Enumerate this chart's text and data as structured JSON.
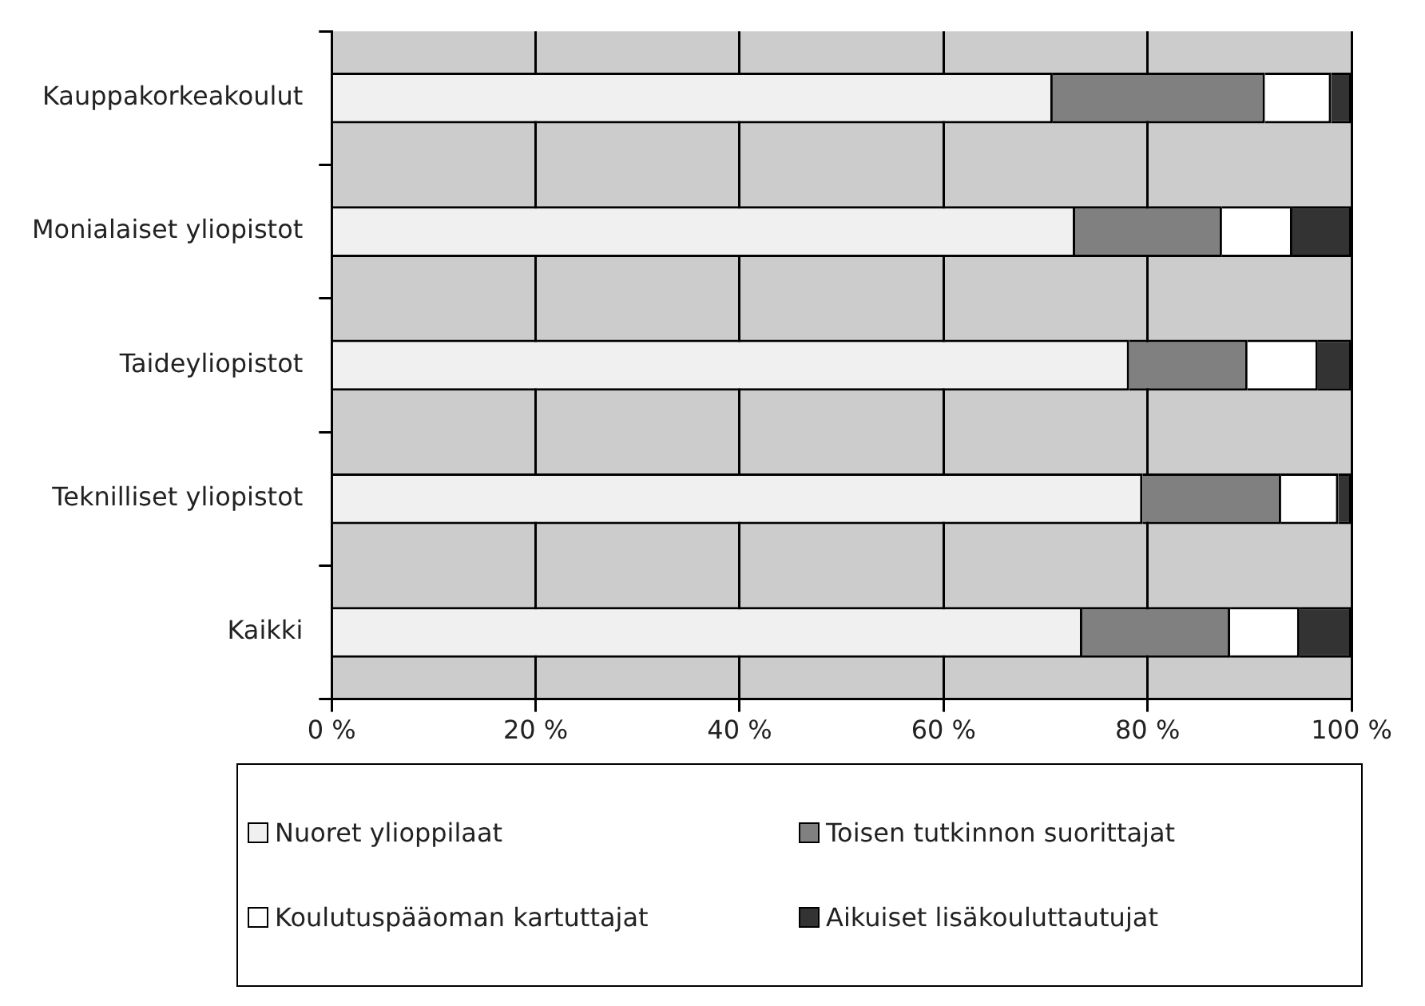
{
  "chart_data": {
    "type": "bar",
    "orientation": "horizontal",
    "stacked": true,
    "categories": [
      "Kauppakorkeakoulut",
      "Monialaiset yliopistot",
      "Taideyliopistot",
      "Teknilliset yliopistot",
      "Kaikki"
    ],
    "series": [
      {
        "name": "Nuoret ylioppilaat",
        "color": "#f0f0f0",
        "values": [
          70.7,
          72.9,
          78.2,
          79.5,
          73.6
        ]
      },
      {
        "name": "Toisen tutkinnon suorittajat",
        "color": "#808080",
        "values": [
          20.8,
          14.4,
          11.6,
          13.6,
          14.5
        ]
      },
      {
        "name": "Koulutuspääoman kartuttajat",
        "color": "#ffffff",
        "values": [
          6.5,
          6.9,
          6.9,
          5.6,
          6.8
        ]
      },
      {
        "name": "Aikuiset lisäkouluttautujat",
        "color": "#333333",
        "values": [
          2.0,
          5.8,
          3.3,
          1.3,
          5.1
        ]
      }
    ],
    "xlim": [
      0,
      100
    ],
    "xticks": [
      {
        "value": 0,
        "label": "0 %"
      },
      {
        "value": 20,
        "label": "20 %"
      },
      {
        "value": 40,
        "label": "40 %"
      },
      {
        "value": 60,
        "label": "60 %"
      },
      {
        "value": 80,
        "label": "80 %"
      },
      {
        "value": 100,
        "label": "100 %"
      }
    ],
    "grid": "x",
    "legend": "bottom"
  }
}
